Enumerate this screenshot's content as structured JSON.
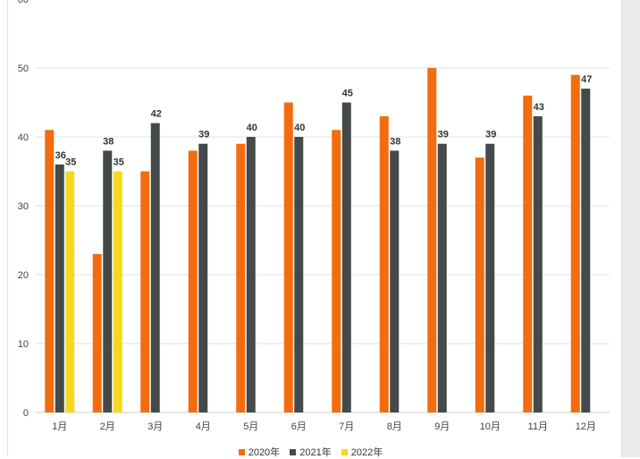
{
  "chart_data": {
    "type": "bar",
    "categories": [
      "1月",
      "2月",
      "3月",
      "4月",
      "5月",
      "6月",
      "7月",
      "8月",
      "9月",
      "10月",
      "11月",
      "12月"
    ],
    "series": [
      {
        "name": "2020年",
        "color": "#f36c0e",
        "values": [
          41,
          23,
          35,
          38,
          39,
          45,
          41,
          43,
          50,
          37,
          46,
          49
        ],
        "labels": [
          null,
          null,
          null,
          null,
          null,
          null,
          null,
          null,
          null,
          null,
          null,
          null
        ]
      },
      {
        "name": "2021年",
        "color": "#434a49",
        "values": [
          36,
          38,
          42,
          39,
          40,
          40,
          45,
          38,
          39,
          39,
          43,
          47
        ],
        "labels": [
          "36",
          "38",
          "42",
          "39",
          "40",
          "40",
          "45",
          "38",
          "39",
          "39",
          "43",
          "47"
        ]
      },
      {
        "name": "2022年",
        "color": "#f7d81e",
        "values": [
          35,
          35,
          null,
          null,
          null,
          null,
          null,
          null,
          null,
          null,
          null,
          null
        ],
        "labels": [
          "35",
          "35",
          null,
          null,
          null,
          null,
          null,
          null,
          null,
          null,
          null,
          null
        ]
      }
    ],
    "yticks": [
      0,
      10,
      20,
      30,
      40,
      50
    ],
    "ylim": [
      0,
      60
    ],
    "grid": true,
    "legend": "bottom-center"
  }
}
